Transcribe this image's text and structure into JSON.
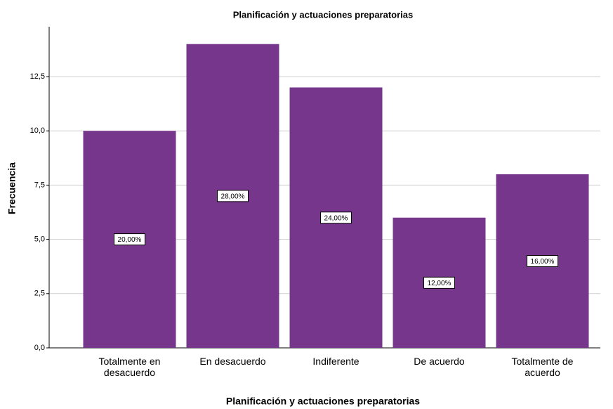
{
  "chart_data": {
    "type": "bar",
    "title": "Planificación y actuaciones preparatorias",
    "x_label": "Planificación y actuaciones preparatorias",
    "y_label": "Frecuencia",
    "categories": [
      "Totalmente en desacuerdo",
      "En desacuerdo",
      "Indiferente",
      "De acuerdo",
      "Totalmente de acuerdo"
    ],
    "values": [
      10,
      14,
      12,
      6,
      8
    ],
    "percentages": [
      20,
      28,
      24,
      12,
      16
    ],
    "percentage_labels": [
      "20,00%",
      "28,00%",
      "24,00%",
      "12,00%",
      "16,00%"
    ],
    "color": "#76368c",
    "ylim": [
      0,
      14.8
    ],
    "yticks": [
      {
        "value": 0,
        "label": "0,0"
      },
      {
        "value": 2.5,
        "label": "2,5"
      },
      {
        "value": 5,
        "label": "5,0"
      },
      {
        "value": 7.5,
        "label": "7,5"
      },
      {
        "value": 10,
        "label": "10,0"
      },
      {
        "value": 12.5,
        "label": "12,5"
      }
    ],
    "grid": true
  }
}
